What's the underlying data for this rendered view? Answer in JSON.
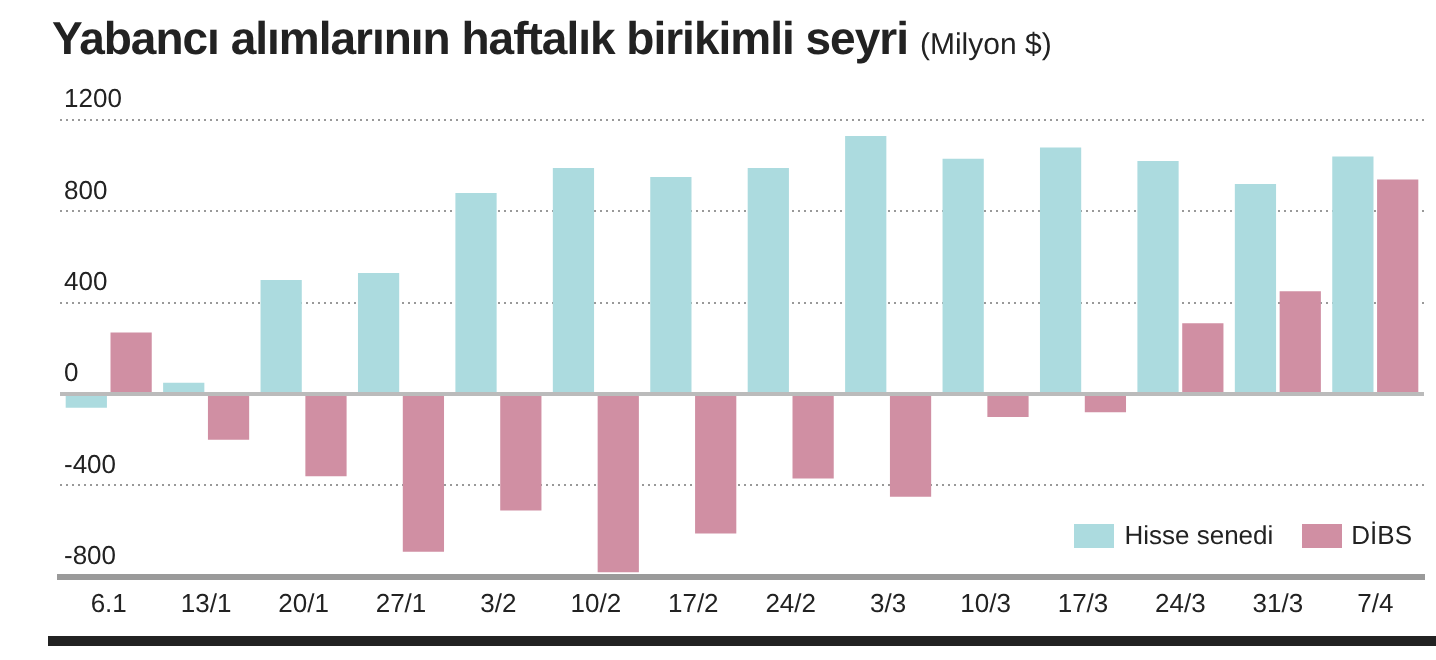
{
  "chart_data": {
    "type": "bar",
    "title": "Yabancı alımlarının haftalık birikimli seyri",
    "subtitle": "(Milyon $)",
    "categories": [
      "6.1",
      "13/1",
      "20/1",
      "27/1",
      "3/2",
      "10/2",
      "17/2",
      "24/2",
      "3/3",
      "10/3",
      "17/3",
      "24/3",
      "31/3",
      "7/4"
    ],
    "series": [
      {
        "name": "Hisse senedi",
        "color": "#acdbdf",
        "values": [
          -60,
          50,
          500,
          530,
          880,
          990,
          950,
          990,
          1130,
          1030,
          1080,
          1020,
          920,
          1040
        ]
      },
      {
        "name": "DİBS",
        "color": "#d08fa3",
        "values": [
          270,
          -200,
          -360,
          -690,
          -510,
          -780,
          -610,
          -370,
          -450,
          -100,
          -80,
          310,
          450,
          940
        ]
      }
    ],
    "ylim": [
      -800,
      1200
    ],
    "yticks": [
      -800,
      -400,
      0,
      400,
      800,
      1200
    ],
    "grid": "y",
    "legend": "bottom right"
  }
}
